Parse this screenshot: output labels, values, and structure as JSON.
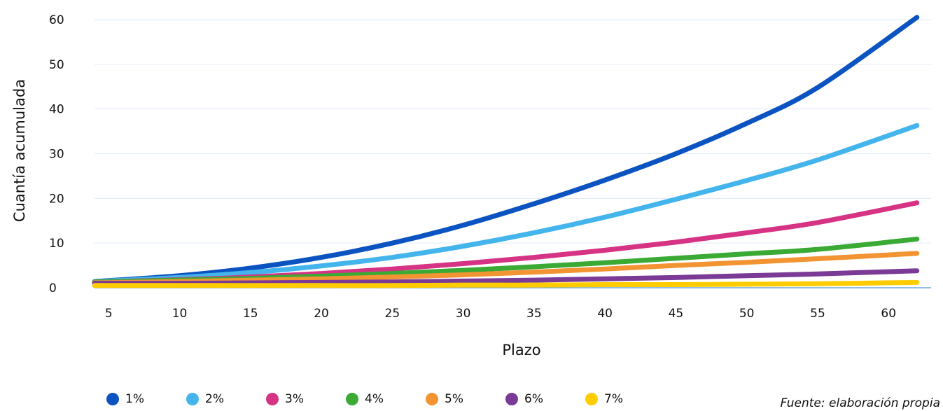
{
  "chart_data": {
    "type": "line",
    "xlabel": "Plazo",
    "ylabel": "Cuantía acumulada",
    "xlim": [
      4,
      63
    ],
    "ylim": [
      0,
      60
    ],
    "x_ticks": [
      5,
      10,
      15,
      20,
      25,
      30,
      35,
      40,
      45,
      50,
      55,
      60
    ],
    "y_ticks": [
      0,
      10,
      20,
      30,
      40,
      50,
      60
    ],
    "grid": "horizontal",
    "legend_position": "bottom",
    "source": "Fuente: elaboración propia",
    "x": [
      4,
      10,
      15,
      20,
      25,
      30,
      35,
      40,
      45,
      50,
      55,
      62
    ],
    "series": [
      {
        "name": "1%",
        "color": "#0a53c1",
        "values": [
          1.4,
          2.7,
          4.4,
          6.8,
          10.0,
          14.0,
          18.8,
          24.1,
          30.0,
          36.8,
          44.8,
          60.5
        ]
      },
      {
        "name": "2%",
        "color": "#44b5ec",
        "values": [
          1.4,
          2.3,
          3.4,
          4.9,
          6.8,
          9.3,
          12.3,
          15.8,
          19.8,
          24.0,
          28.6,
          36.3
        ]
      },
      {
        "name": "3%",
        "color": "#d63384",
        "values": [
          1.3,
          1.8,
          2.4,
          3.2,
          4.2,
          5.4,
          6.8,
          8.4,
          10.2,
          12.3,
          14.6,
          19.0
        ]
      },
      {
        "name": "4%",
        "color": "#3aaa35",
        "values": [
          1.3,
          1.7,
          2.1,
          2.6,
          3.2,
          3.9,
          4.7,
          5.6,
          6.6,
          7.6,
          8.6,
          10.9
        ]
      },
      {
        "name": "5%",
        "color": "#f39433",
        "values": [
          1.1,
          1.4,
          1.7,
          2.0,
          2.4,
          2.9,
          3.5,
          4.2,
          5.0,
          5.7,
          6.5,
          7.7
        ]
      },
      {
        "name": "6%",
        "color": "#7b3a96",
        "values": [
          1.0,
          1.0,
          1.1,
          1.2,
          1.3,
          1.5,
          1.7,
          2.0,
          2.3,
          2.7,
          3.1,
          3.8
        ]
      },
      {
        "name": "7%",
        "color": "#ffcc00",
        "values": [
          0.5,
          0.5,
          0.5,
          0.5,
          0.5,
          0.6,
          0.6,
          0.7,
          0.7,
          0.8,
          0.9,
          1.2
        ]
      }
    ]
  }
}
